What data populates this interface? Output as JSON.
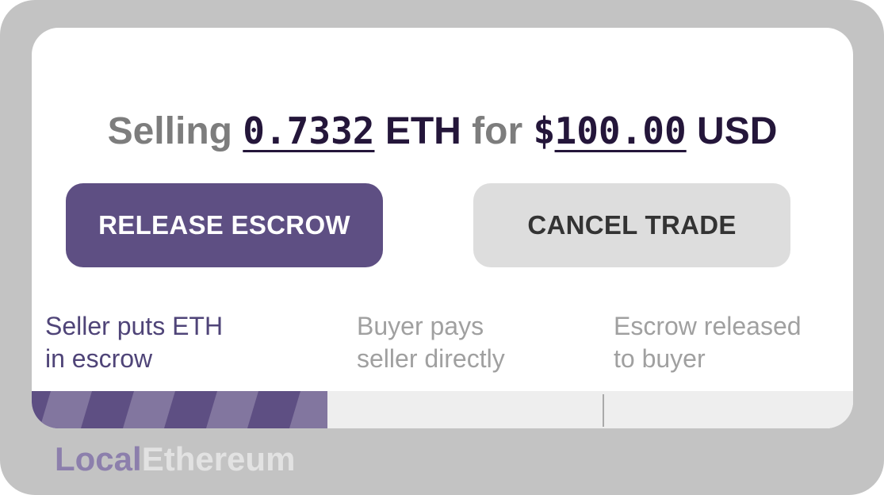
{
  "headline": {
    "word_selling": "Selling",
    "eth_amount": "0.7332",
    "word_eth": "ETH",
    "word_for": "for",
    "currency_symbol": "$",
    "fiat_amount": "100.00",
    "word_usd": "USD"
  },
  "actions": {
    "release_label": "RELEASE ESCROW",
    "cancel_label": "CANCEL TRADE"
  },
  "steps": [
    {
      "line1": "Seller puts ETH",
      "line2": "in escrow",
      "active": true
    },
    {
      "line1": "Buyer pays",
      "line2": "seller directly",
      "active": false
    },
    {
      "line1": "Escrow released",
      "line2": "to buyer",
      "active": false
    }
  ],
  "progress": {
    "completed_steps": 1,
    "total_steps": 3,
    "fill_fraction": 0.36,
    "fill_color": "#5e4f83",
    "stripe_color": "#82769f",
    "track_color": "#eeeeee"
  },
  "brand": {
    "part1": "Local",
    "part2": "Ethereum"
  },
  "colors": {
    "accent": "#5e4f83",
    "frame": "#c3c3c3",
    "cancel_bg": "#dddddd"
  }
}
